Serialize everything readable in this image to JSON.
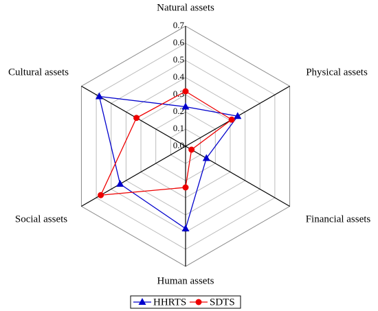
{
  "chart_data": {
    "type": "radar",
    "categories": [
      "Natural assets",
      "Physical assets",
      "Financial assets",
      "Human assets",
      "Social assets",
      "Cultural assets"
    ],
    "series": [
      {
        "name": "HHRTS",
        "color": "#0000cc",
        "marker": "triangle",
        "values": [
          0.23,
          0.35,
          0.14,
          0.48,
          0.44,
          0.58
        ]
      },
      {
        "name": "SDTS",
        "color": "#ee0000",
        "marker": "circle",
        "values": [
          0.32,
          0.31,
          0.04,
          0.24,
          0.57,
          0.33
        ]
      }
    ],
    "ylim": [
      0,
      0.7
    ],
    "yticks": [
      {
        "value": 0,
        "label": "0.0"
      },
      0.1,
      0.2,
      0.3,
      0.4,
      0.5,
      0.6,
      0.7
    ],
    "grid": true,
    "legend": "bottom"
  }
}
